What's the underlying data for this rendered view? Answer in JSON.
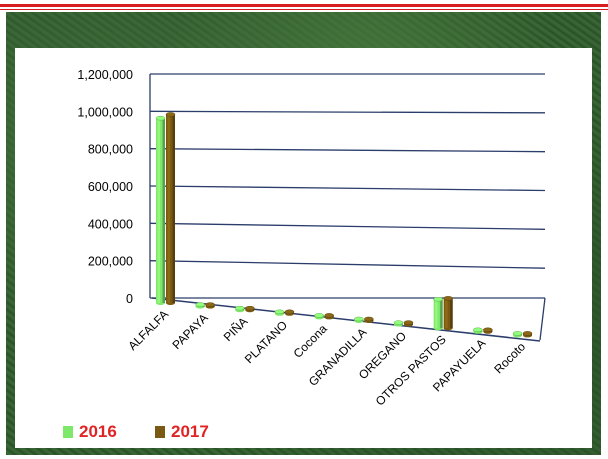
{
  "chart_data": {
    "type": "bar",
    "categories": [
      "ALFALFA",
      "PAPAYA",
      "PIÑA",
      "PLATANO",
      "Cocona",
      "GRANADILLA",
      "OREGANO",
      "OTROS PASTOS",
      "PAPAYUELA",
      "Rocoto"
    ],
    "series": [
      {
        "name": "2016",
        "values": [
          990000,
          2500,
          2500,
          2000,
          1500,
          2500,
          2000,
          155000,
          1500,
          1500
        ],
        "color": "#7ee86b"
      },
      {
        "name": "2017",
        "values": [
          1010000,
          2500,
          2500,
          2000,
          1500,
          2500,
          2000,
          160000,
          1500,
          1500
        ],
        "color": "#7a5a12"
      }
    ],
    "yticks": [
      "0",
      "200,000",
      "400,000",
      "600,000",
      "800,000",
      "1,000,000",
      "1,200,000"
    ],
    "ylim": [
      0,
      1200000
    ],
    "grid": true,
    "legend": "bottom-left"
  }
}
